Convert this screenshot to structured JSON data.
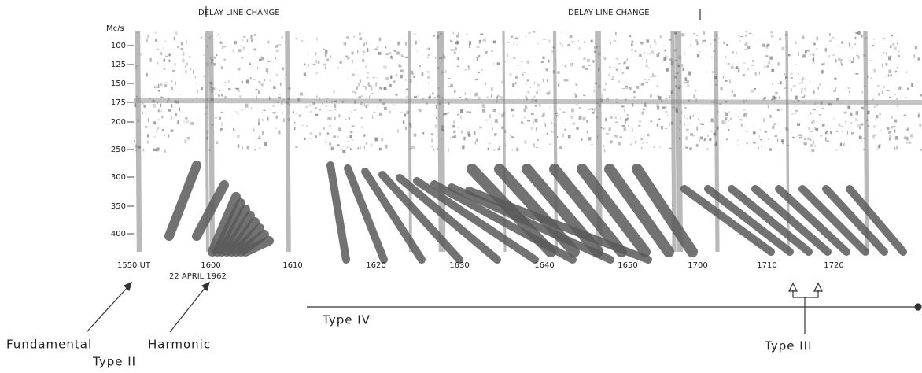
{
  "header": {
    "units": "Mc/s",
    "delay_line_labels": [
      "DELAY LINE CHANGE",
      "DELAY LINE CHANGE"
    ]
  },
  "frequency_labels": [
    "100",
    "125",
    "150",
    "175",
    "200",
    "250",
    "300",
    "350",
    "400"
  ],
  "time_labels": [
    "1550 UT",
    "1600",
    "1610",
    "1620",
    "1630",
    "1640",
    "1650",
    "1700",
    "1710",
    "1720"
  ],
  "date": "22 APRIL 1962",
  "annotations": {
    "fundamental": "Fundamental",
    "harmonic": "Harmonic",
    "type_ii": "Type II",
    "type_iv": "Type IV",
    "type_iii": "Type III"
  }
}
